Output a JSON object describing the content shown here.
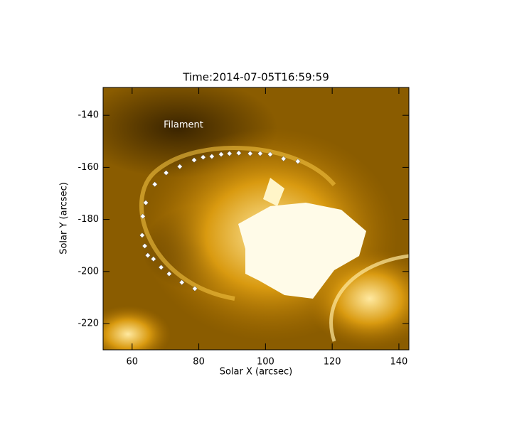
{
  "chart_data": {
    "type": "scatter",
    "title": "Time:2014-07-05T16:59:59",
    "x_label": "Solar X (arcsec)",
    "y_label": "Solar Y (arcsec)",
    "annotation": "Filament",
    "color": "#ffffff",
    "grid": false,
    "xlim": [
      51.3,
      143.0
    ],
    "ylim": [
      -230.1,
      -129.3
    ],
    "xticks": [
      60,
      80,
      100,
      120,
      140
    ],
    "yticks": [
      -140,
      -160,
      -180,
      -200,
      -220
    ],
    "series": [
      {
        "name": null,
        "color": "#ffffff",
        "x": [
          109.7,
          105.4,
          101.4,
          98.4,
          95.4,
          92.0,
          89.2,
          86.7,
          83.9,
          81.3,
          78.6,
          74.3,
          70.2,
          66.8,
          64.1,
          63.2,
          63.0,
          63.8,
          64.7,
          66.4,
          68.7,
          71.1,
          74.9,
          78.8
        ],
        "values": [
          -157.7,
          -156.7,
          -155.0,
          -154.7,
          -154.7,
          -154.5,
          -154.7,
          -155.0,
          -155.8,
          -156.1,
          -157.2,
          -159.7,
          -162.1,
          -166.5,
          -173.6,
          -178.8,
          -186.1,
          -190.2,
          -193.8,
          -195.2,
          -198.4,
          -200.9,
          -204.2,
          -206.6
        ]
      }
    ]
  }
}
